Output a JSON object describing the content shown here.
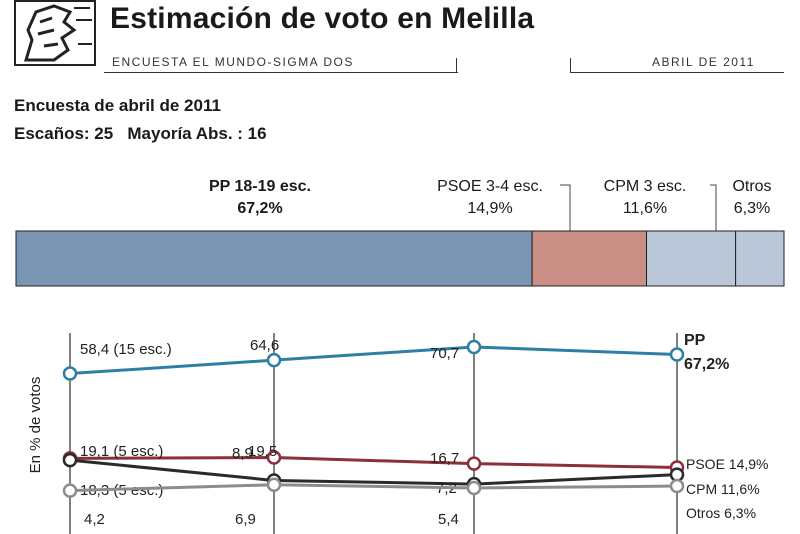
{
  "header": {
    "title": "Estimación de voto en Melilla",
    "source": "ENCUESTA EL MUNDO-SIGMA DOS",
    "date": "ABRIL DE 2011"
  },
  "survey": {
    "heading": "Encuesta de abril de 2011",
    "seats_text": "Escaños: 25   Mayoría Abs. : 16"
  },
  "bar": {
    "segments": [
      {
        "party": "PP",
        "seats_label": "PP 18-19 esc.",
        "pct_label": "67,2%",
        "value": 67.2,
        "color": "#7a96b4"
      },
      {
        "party": "PSOE",
        "seats_label": "PSOE 3-4 esc.",
        "pct_label": "14,9%",
        "value": 14.9,
        "color": "#c98f84"
      },
      {
        "party": "CPM",
        "seats_label": "CPM 3 esc.",
        "pct_label": "11,6%",
        "value": 11.6,
        "color": "#b9c7d8"
      },
      {
        "party": "Otros",
        "seats_label": "Otros",
        "pct_label": "6,3%",
        "value": 6.3,
        "color": "#b9c7d8"
      }
    ]
  },
  "chart_data": {
    "type": "line",
    "ylabel": "En % de votos",
    "series": [
      {
        "name": "PP",
        "color": "#2e7fa3",
        "values": [
          58.4,
          64.6,
          70.7,
          67.2
        ],
        "labels": [
          "58,4 (15 esc.)",
          "64,6",
          "70,7",
          ""
        ],
        "end_label": [
          "PP",
          "67,2%"
        ]
      },
      {
        "name": "PSOE",
        "color": "#8b2f3a",
        "values": [
          19.1,
          19.5,
          16.7,
          14.9
        ],
        "labels": [
          "19,1 (5 esc.)",
          "19,5",
          "16,7",
          ""
        ],
        "end_label": [
          "PSOE 14,9%"
        ]
      },
      {
        "name": "CPM",
        "color": "#2a2a2a",
        "values": [
          18.3,
          8.9,
          7.2,
          11.6
        ],
        "labels": [
          "18,3 (5 esc.)",
          "8,9",
          "7,2",
          ""
        ],
        "end_label": [
          "CPM 11,6%"
        ]
      },
      {
        "name": "Otros",
        "color": "#8c8c8c",
        "values": [
          4.2,
          6.9,
          5.4,
          6.3
        ],
        "labels": [
          "4,2",
          "6,9",
          "5,4",
          ""
        ],
        "end_label": [
          "Otros 6,3%"
        ]
      }
    ]
  }
}
